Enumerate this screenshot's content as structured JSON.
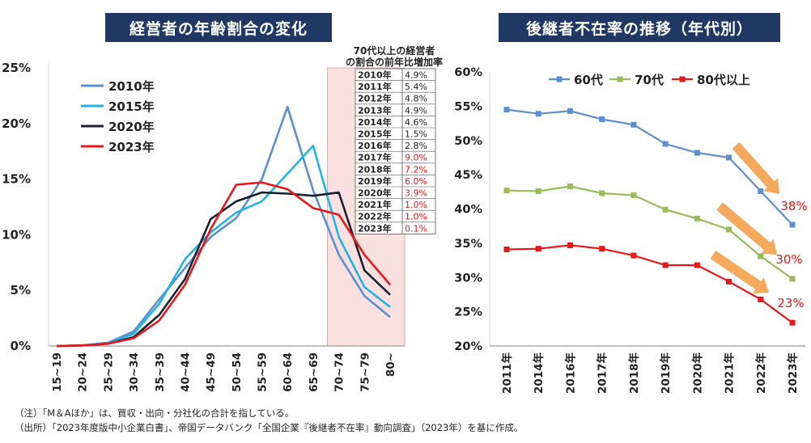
{
  "chart_data": [
    {
      "type": "line",
      "title": "経営者の年齢割合の変化",
      "categories": [
        "15~19",
        "20~24",
        "25~29",
        "30~34",
        "35~39",
        "40~44",
        "45~49",
        "50~54",
        "55~59",
        "60~64",
        "65~69",
        "70~74",
        "75~79",
        "80~"
      ],
      "yticks": [
        "0%",
        "5%",
        "10%",
        "15%",
        "20%",
        "25%"
      ],
      "ylim": [
        0,
        25
      ],
      "series": [
        {
          "name": "2010年",
          "color": "#5b8fcf",
          "values": [
            0.0,
            0.05,
            0.3,
            1.3,
            4.2,
            7.0,
            9.8,
            11.5,
            15.0,
            21.5,
            14.0,
            8.2,
            4.5,
            2.6
          ]
        },
        {
          "name": "2015年",
          "color": "#1fb4e8",
          "values": [
            0.0,
            0.05,
            0.25,
            1.1,
            3.8,
            7.8,
            10.2,
            12.0,
            13.0,
            15.5,
            18.0,
            9.8,
            5.3,
            3.5
          ]
        },
        {
          "name": "2020年",
          "color": "#1a2030",
          "values": [
            0.0,
            0.05,
            0.2,
            0.8,
            2.8,
            6.0,
            11.4,
            13.0,
            13.8,
            13.7,
            13.5,
            13.8,
            6.8,
            4.6
          ]
        },
        {
          "name": "2023年",
          "color": "#e8181a",
          "values": [
            0.0,
            0.05,
            0.2,
            0.7,
            2.3,
            5.5,
            10.5,
            14.5,
            14.7,
            14.1,
            12.4,
            11.8,
            8.2,
            5.5
          ]
        }
      ],
      "highlight_note": {
        "title_line1": "70代以上の経営者",
        "title_line2": "の割合の前年比増加率",
        "rows": [
          {
            "year": "2010年",
            "rate": "4.9%",
            "color": "#222222"
          },
          {
            "year": "2011年",
            "rate": "5.4%",
            "color": "#222222"
          },
          {
            "year": "2012年",
            "rate": "4.8%",
            "color": "#222222"
          },
          {
            "year": "2013年",
            "rate": "4.9%",
            "color": "#222222"
          },
          {
            "year": "2014年",
            "rate": "4.6%",
            "color": "#222222"
          },
          {
            "year": "2015年",
            "rate": "1.5%",
            "color": "#222222"
          },
          {
            "year": "2016年",
            "rate": "2.8%",
            "color": "#222222"
          },
          {
            "year": "2017年",
            "rate": "9.0%",
            "color": "#e8181a"
          },
          {
            "year": "2018年",
            "rate": "7.2%",
            "color": "#e8181a"
          },
          {
            "year": "2019年",
            "rate": "6.0%",
            "color": "#e8181a"
          },
          {
            "year": "2020年",
            "rate": "3.9%",
            "color": "#e8181a"
          },
          {
            "year": "2021年",
            "rate": "1.0%",
            "color": "#e8181a"
          },
          {
            "year": "2022年",
            "rate": "1.0%",
            "color": "#e8181a"
          },
          {
            "year": "2023年",
            "rate": "0.1%",
            "color": "#e8181a"
          }
        ]
      }
    },
    {
      "type": "line",
      "title": "後継者不在率の推移（年代別）",
      "categories": [
        "2011年",
        "2014年",
        "2016年",
        "2017年",
        "2018年",
        "2019年",
        "2020年",
        "2021年",
        "2022年",
        "2023年"
      ],
      "yticks": [
        "20%",
        "25%",
        "30%",
        "35%",
        "40%",
        "45%",
        "50%",
        "55%",
        "60%"
      ],
      "ylim": [
        20,
        60
      ],
      "series": [
        {
          "name": "60代",
          "color": "#5b8fcf",
          "values": [
            54.5,
            53.9,
            54.3,
            53.1,
            52.3,
            49.5,
            48.2,
            47.5,
            42.6,
            37.7
          ]
        },
        {
          "name": "70代",
          "color": "#9bbb59",
          "values": [
            42.7,
            42.6,
            43.3,
            42.3,
            42.0,
            39.9,
            38.6,
            37.0,
            33.1,
            29.8
          ]
        },
        {
          "name": "80代以上",
          "color": "#e8181a",
          "values": [
            34.1,
            34.2,
            34.7,
            34.2,
            33.2,
            31.8,
            31.8,
            29.4,
            26.8,
            23.4
          ]
        }
      ],
      "annotations": [
        "38%",
        "30%",
        "23%"
      ]
    }
  ],
  "notes": {
    "line1": "（注）「M＆Aほか」は、買収・出向・分社化の合計を指している。",
    "line2": "（出所）「2023年度版中小企業白書」、帝国データバンク「全国企業『後継者不在率』動向調査」（2023年）を基に作成。"
  }
}
